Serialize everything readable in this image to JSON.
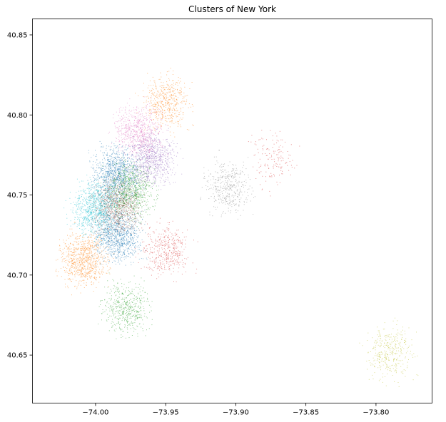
{
  "chart_data": {
    "type": "scatter",
    "title": "Clusters of New York",
    "xlabel": "",
    "ylabel": "",
    "xlim": [
      -74.045,
      -73.76
    ],
    "ylim": [
      40.62,
      40.86
    ],
    "xticks": [
      -74.0,
      -73.95,
      -73.9,
      -73.85,
      -73.8
    ],
    "xtick_labels": [
      "−74.00",
      "−73.95",
      "−73.90",
      "−73.85",
      "−73.80"
    ],
    "yticks": [
      40.65,
      40.7,
      40.75,
      40.8,
      40.85
    ],
    "ytick_labels": [
      "40.65",
      "40.70",
      "40.75",
      "40.80",
      "40.85"
    ],
    "grid": false,
    "legend": false,
    "series": [
      {
        "color": "#1f77b4",
        "clusters": [
          {
            "x": -73.985,
            "y": 40.763,
            "count": 1100
          },
          {
            "x": -73.985,
            "y": 40.725,
            "count": 1000
          }
        ]
      },
      {
        "color": "#ff7f0e",
        "clusters": [
          {
            "x": -74.008,
            "y": 40.71,
            "count": 800
          },
          {
            "x": -73.95,
            "y": 40.808,
            "count": 500
          }
        ]
      },
      {
        "color": "#2ca02c",
        "clusters": [
          {
            "x": -73.975,
            "y": 40.753,
            "count": 800
          },
          {
            "x": -73.978,
            "y": 40.68,
            "count": 500
          }
        ]
      },
      {
        "color": "#d62728",
        "clusters": [
          {
            "x": -73.95,
            "y": 40.715,
            "count": 400
          },
          {
            "x": -73.873,
            "y": 40.772,
            "count": 150
          }
        ]
      },
      {
        "color": "#9467bd",
        "clusters": [
          {
            "x": -73.96,
            "y": 40.773,
            "count": 800
          }
        ]
      },
      {
        "color": "#8c564b",
        "clusters": [
          {
            "x": -73.985,
            "y": 40.743,
            "count": 900
          }
        ]
      },
      {
        "color": "#e377c2",
        "clusters": [
          {
            "x": -73.97,
            "y": 40.79,
            "count": 700
          }
        ]
      },
      {
        "color": "#7f7f7f",
        "clusters": [
          {
            "x": -73.905,
            "y": 40.755,
            "count": 400
          }
        ]
      },
      {
        "color": "#bcbd22",
        "clusters": [
          {
            "x": -73.79,
            "y": 40.652,
            "count": 350
          }
        ]
      },
      {
        "color": "#17becf",
        "clusters": [
          {
            "x": -74.0,
            "y": 40.742,
            "count": 900
          }
        ]
      }
    ]
  }
}
